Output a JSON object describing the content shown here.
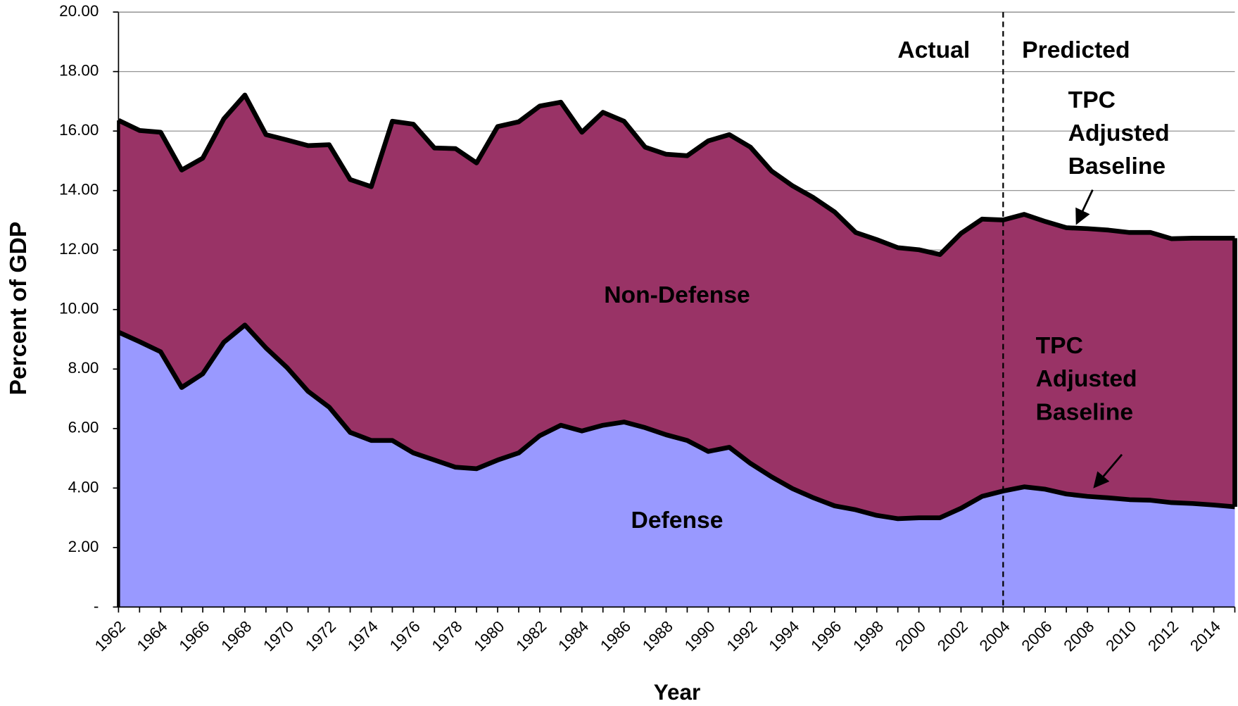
{
  "chart_data": {
    "type": "stacked_area",
    "y_axis_label": "Percent of GDP",
    "x_axis_label": "Year",
    "categories": [
      "1962",
      null,
      "1964",
      null,
      "1966",
      null,
      "1968",
      null,
      "1970",
      null,
      "1972",
      null,
      "1974",
      null,
      "1976",
      null,
      "1978",
      null,
      "1980",
      null,
      "1982",
      null,
      "1984",
      null,
      "1986",
      null,
      "1988",
      null,
      "1990",
      null,
      "1992",
      null,
      "1994",
      null,
      "1996",
      null,
      "1998",
      null,
      "2000",
      null,
      "2002",
      null,
      "2004",
      null,
      "2006",
      null,
      "2008",
      null,
      "2010",
      null,
      "2012",
      null,
      "2014",
      null
    ],
    "series": [
      {
        "name": "Defense",
        "color": "#9999ff",
        "values": [
          9.24,
          8.92,
          8.58,
          7.38,
          7.84,
          8.9,
          9.48,
          8.71,
          8.05,
          7.25,
          6.72,
          5.87,
          5.6,
          5.6,
          5.18,
          4.94,
          4.7,
          4.65,
          4.94,
          5.18,
          5.76,
          6.11,
          5.92,
          6.11,
          6.22,
          6.03,
          5.79,
          5.6,
          5.23,
          5.37,
          4.83,
          4.38,
          3.98,
          3.67,
          3.4,
          3.27,
          3.08,
          2.97,
          3.0,
          3.0,
          3.32,
          3.72,
          3.9,
          4.04,
          3.96,
          3.8,
          3.72,
          3.67,
          3.61,
          3.59,
          3.51,
          3.48,
          3.43,
          3.37
        ]
      },
      {
        "name": "Non-Defense",
        "color": "#993366",
        "values": [
          7.12,
          7.1,
          7.38,
          7.31,
          7.25,
          7.51,
          7.73,
          7.17,
          7.65,
          8.26,
          8.82,
          8.5,
          8.53,
          10.73,
          11.05,
          10.49,
          10.71,
          10.28,
          11.21,
          11.13,
          11.08,
          10.86,
          10.04,
          10.52,
          10.11,
          9.43,
          9.43,
          9.57,
          10.44,
          10.51,
          10.63,
          10.28,
          10.18,
          10.09,
          9.88,
          9.32,
          9.27,
          9.11,
          9.01,
          8.85,
          9.24,
          9.32,
          9.11,
          9.16,
          9.0,
          8.95,
          9.0,
          9.0,
          8.98,
          9.0,
          8.87,
          8.92,
          8.97,
          9.03
        ]
      }
    ],
    "ylim": [
      0,
      20
    ],
    "yticks": [
      {
        "value": 0,
        "label": "-"
      },
      {
        "value": 2,
        "label": "2.00"
      },
      {
        "value": 4,
        "label": "4.00"
      },
      {
        "value": 6,
        "label": "6.00"
      },
      {
        "value": 8,
        "label": "8.00"
      },
      {
        "value": 10,
        "label": "10.00"
      },
      {
        "value": 12,
        "label": "12.00"
      },
      {
        "value": 14,
        "label": "14.00"
      },
      {
        "value": 16,
        "label": "16.00"
      },
      {
        "value": 18,
        "label": "18.00"
      },
      {
        "value": 20,
        "label": "20.00"
      }
    ],
    "grid": true,
    "divider_at": "2004",
    "annotations": {
      "actual": "Actual",
      "predicted": "Predicted",
      "total_baseline": [
        "TPC",
        "Adjusted",
        "Baseline"
      ],
      "defense_baseline": [
        "TPC",
        "Adjusted",
        "Baseline"
      ]
    }
  }
}
